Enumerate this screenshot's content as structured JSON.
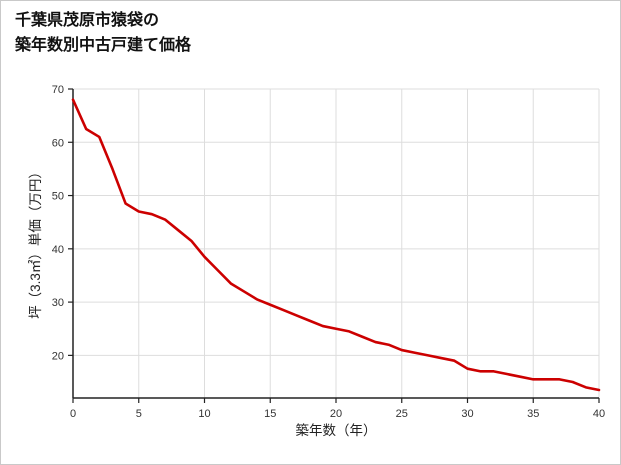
{
  "page": {
    "background": "#ffffff",
    "border_color": "#c9c9c9"
  },
  "title": {
    "line1": "千葉県茂原市猿袋の",
    "line2": "築年数別中古戸建て価格"
  },
  "chart_data": {
    "type": "line",
    "title": "千葉県茂原市猿袋の築年数別中古戸建て価格",
    "xlabel": "築年数（年）",
    "ylabel": "坪（3.3㎡）単価（万円）",
    "x": [
      0,
      1,
      2,
      3,
      4,
      5,
      6,
      7,
      8,
      9,
      10,
      11,
      12,
      13,
      14,
      15,
      16,
      17,
      18,
      19,
      20,
      21,
      22,
      23,
      24,
      25,
      26,
      27,
      28,
      29,
      30,
      31,
      32,
      33,
      34,
      35,
      36,
      37,
      38,
      39,
      40
    ],
    "values": [
      68,
      62.5,
      61,
      55,
      48.5,
      47,
      46.5,
      45.5,
      43.5,
      41.5,
      38.5,
      36,
      33.5,
      32,
      30.5,
      29.5,
      28.5,
      27.5,
      26.5,
      25.5,
      25,
      24.5,
      23.5,
      22.5,
      22,
      21,
      20.5,
      20,
      19.5,
      19,
      17.5,
      17,
      17,
      16.5,
      16,
      15.5,
      15.5,
      15.5,
      15,
      14,
      13.5
    ],
    "xlim": [
      0,
      40
    ],
    "ylim": [
      12,
      70
    ],
    "x_ticks": [
      0,
      5,
      10,
      15,
      20,
      25,
      30,
      35,
      40
    ],
    "y_ticks": [
      20,
      30,
      40,
      50,
      60,
      70
    ],
    "line_color": "#cc0000",
    "grid": true,
    "grid_color": "#dddddd",
    "axis_color": "#222222",
    "legend": "none"
  }
}
